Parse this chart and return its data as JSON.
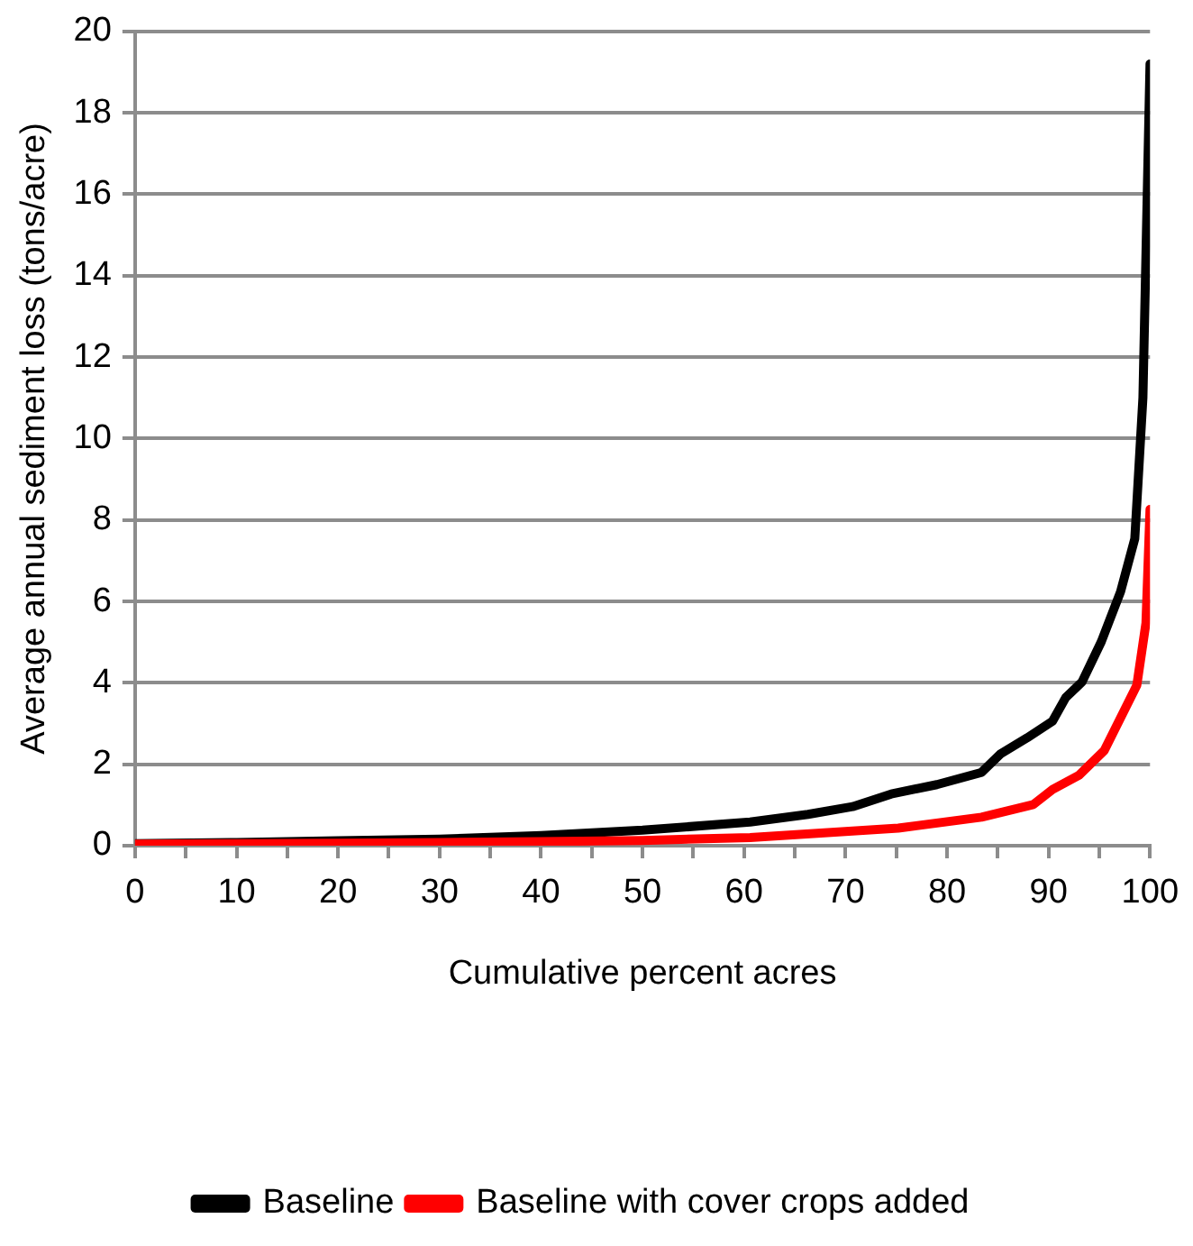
{
  "chart_data": {
    "type": "line",
    "xlabel": "Cumulative percent acres",
    "ylabel": "Average annual sediment loss (tons/acre)",
    "series": [
      {
        "name": "Baseline",
        "color": "#000000",
        "x": [
          0,
          10,
          20,
          30,
          40,
          50,
          60.6,
          66.3,
          70.7,
          74.5,
          79,
          83.4,
          85.3,
          87.9,
          90.4,
          91.7,
          93.3,
          95.2,
          97.1,
          98.5,
          99.3,
          100
        ],
        "values": [
          0.05,
          0.08,
          0.12,
          0.16,
          0.25,
          0.38,
          0.58,
          0.77,
          0.96,
          1.27,
          1.5,
          1.8,
          2.26,
          2.65,
          3.06,
          3.64,
          4.02,
          5.01,
          6.24,
          7.54,
          11.0,
          19.2
        ]
      },
      {
        "name": "Baseline with cover crops added",
        "color": "#ff0000",
        "x": [
          0,
          10,
          20,
          30,
          40,
          50,
          60.6,
          75.2,
          83.4,
          88.5,
          90.4,
          93,
          95.5,
          98.7,
          99.6,
          100
        ],
        "values": [
          0.04,
          0.05,
          0.06,
          0.08,
          0.1,
          0.13,
          0.2,
          0.43,
          0.7,
          1.01,
          1.38,
          1.73,
          2.34,
          3.94,
          5.47,
          8.26
        ]
      }
    ],
    "xlim": [
      0,
      100
    ],
    "xticks": [
      0,
      {
        "value": 5,
        "label": null
      },
      10,
      {
        "value": 15,
        "label": null
      },
      20,
      {
        "value": 25,
        "label": null
      },
      30,
      {
        "value": 35,
        "label": null
      },
      40,
      {
        "value": 45,
        "label": null
      },
      50,
      {
        "value": 55,
        "label": null
      },
      60,
      {
        "value": 65,
        "label": null
      },
      70,
      {
        "value": 75,
        "label": null
      },
      80,
      {
        "value": 85,
        "label": null
      },
      90,
      {
        "value": 95,
        "label": null
      },
      100
    ],
    "ylim": [
      0,
      20
    ],
    "yticks": [
      0,
      2,
      4,
      6,
      8,
      10,
      12,
      14,
      16,
      18,
      20
    ],
    "grid": "y",
    "legend": "bottom",
    "marker": "none",
    "line_style": "solid"
  }
}
